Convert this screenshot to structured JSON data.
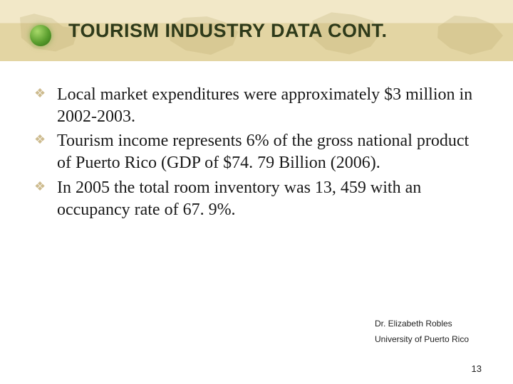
{
  "title": "TOURISM INDUSTRY DATA CONT.",
  "bullets": [
    "Local market expenditures were approximately $3 million in 2002-2003.",
    "Tourism income represents 6% of the gross national product of Puerto Rico (GDP of $74. 79 Billion (2006).",
    "In 2005 the total room inventory was 13, 459 with an occupancy rate of 67. 9%."
  ],
  "footer": {
    "author": "Dr. Elizabeth Robles",
    "affiliation": "University of Puerto Rico"
  },
  "page_number": "13",
  "colors": {
    "title_text": "#2e3a1a",
    "bullet_glyph": "#cdbb8e",
    "band_top": "#f2e8c8",
    "band_bottom": "#e3d5a3"
  }
}
